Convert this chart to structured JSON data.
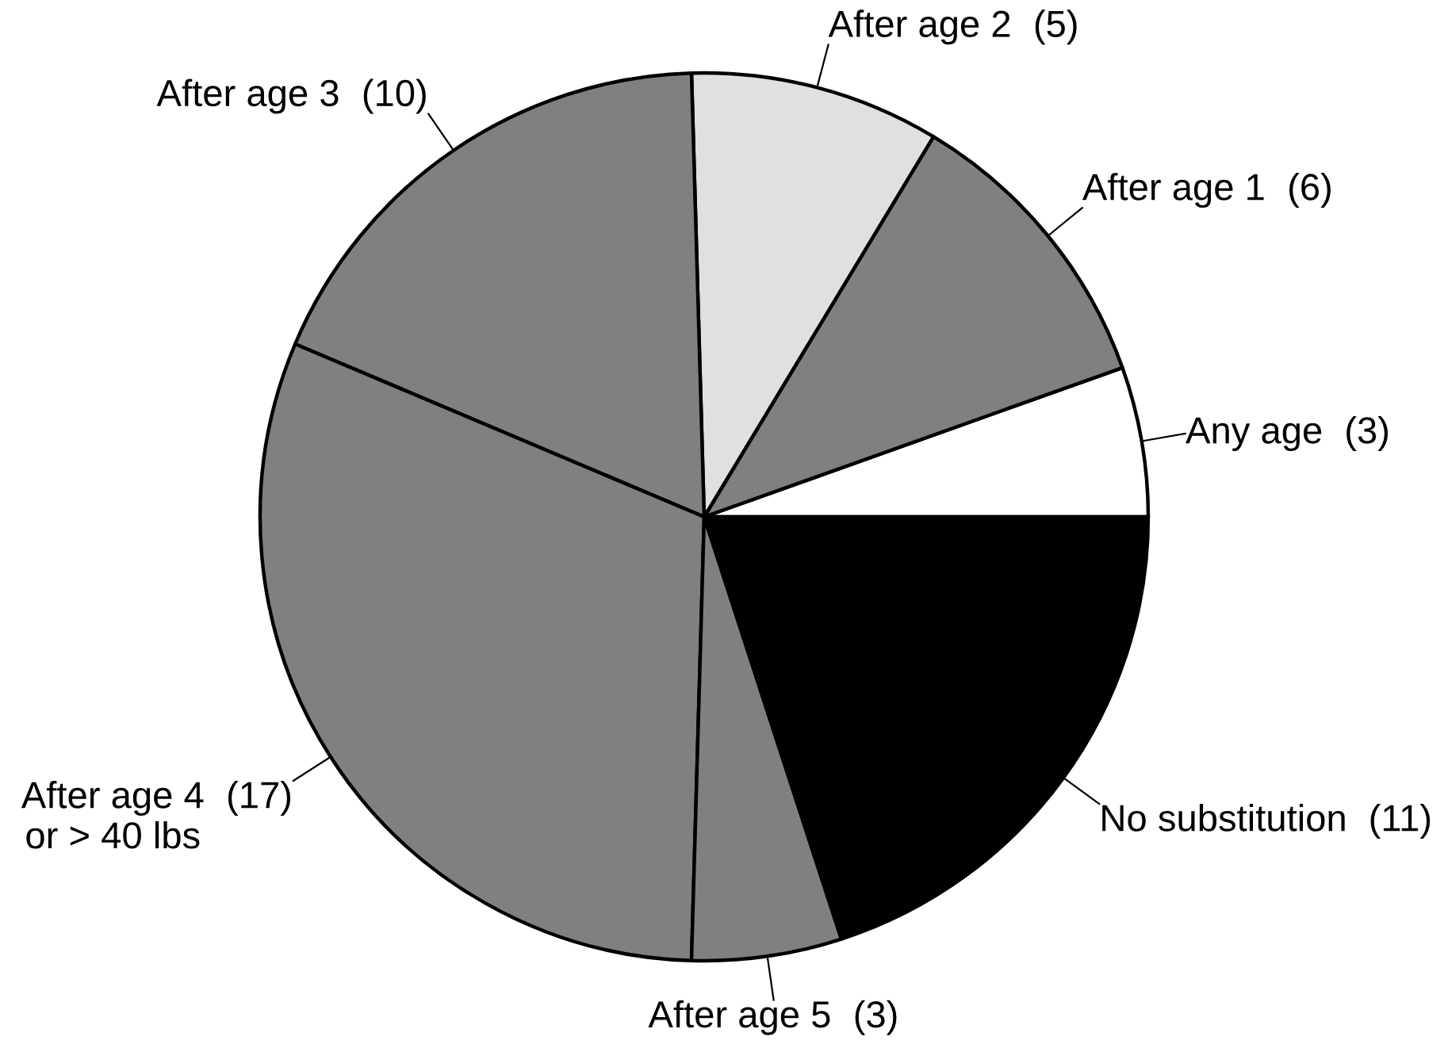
{
  "chart_data": {
    "type": "pie",
    "categories": [
      "Any age",
      "After age 1",
      "After age 2",
      "After age 3",
      "After age 4\nor > 40 lbs",
      "After age 5",
      "No substitution"
    ],
    "values": [
      3,
      6,
      5,
      10,
      17,
      3,
      11
    ],
    "value_labels": [
      "(3)",
      "(6)",
      "(5)",
      "(10)",
      "(17)",
      "(3)",
      "(11)"
    ],
    "colors": [
      "#ffffff",
      "#808080",
      "#e0e0e0",
      "#808080",
      "#808080",
      "#808080",
      "#000000"
    ]
  }
}
